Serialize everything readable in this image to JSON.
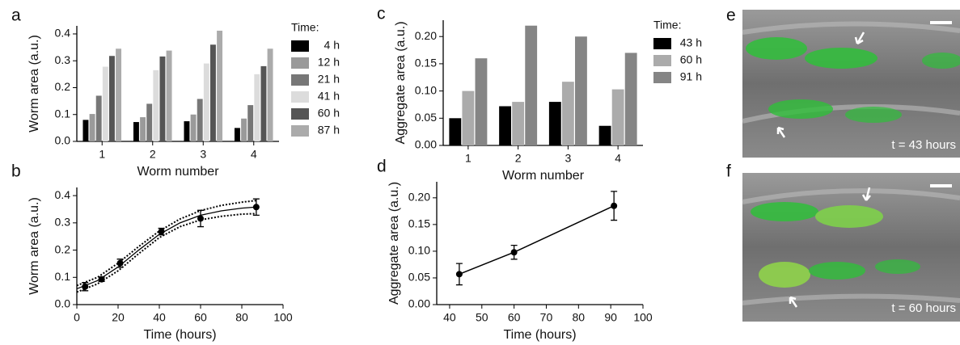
{
  "chart_data": [
    {
      "panel": "a",
      "type": "bar",
      "xlabel": "Worm number",
      "ylabel": "Worm area (a.u.)",
      "categories": [
        "1",
        "2",
        "3",
        "4"
      ],
      "legend_title": "Time:",
      "series": [
        {
          "name": "4 h",
          "color": "#000000",
          "values": [
            0.08,
            0.072,
            0.075,
            0.05
          ]
        },
        {
          "name": "12 h",
          "color": "#9a9a9a",
          "values": [
            0.102,
            0.09,
            0.1,
            0.085
          ]
        },
        {
          "name": "21 h",
          "color": "#777777",
          "values": [
            0.17,
            0.14,
            0.158,
            0.135
          ]
        },
        {
          "name": "41 h",
          "color": "#dcdcdc",
          "values": [
            0.278,
            0.265,
            0.29,
            0.25
          ]
        },
        {
          "name": "60 h",
          "color": "#555555",
          "values": [
            0.318,
            0.316,
            0.36,
            0.28
          ]
        },
        {
          "name": "87 h",
          "color": "#ababab",
          "values": [
            0.345,
            0.338,
            0.412,
            0.345
          ]
        }
      ],
      "ylim": [
        0,
        0.43
      ],
      "yticks": [
        {
          "value": 0,
          "label": "0.0"
        },
        0.1,
        0.2,
        0.3,
        0.4
      ]
    },
    {
      "panel": "b",
      "type": "scatter",
      "xlabel": "Time (hours)",
      "ylabel": "Worm area (a.u.)",
      "x": [
        4,
        12,
        21,
        41,
        60,
        87
      ],
      "values": [
        0.066,
        0.093,
        0.152,
        0.268,
        0.316,
        0.358
      ],
      "errors": [
        0.015,
        0.008,
        0.015,
        0.012,
        0.03,
        0.03
      ],
      "color": "#000000",
      "connect": false,
      "fit": {
        "x": [
          0,
          10,
          20,
          30,
          40,
          50,
          60,
          70,
          80,
          87
        ],
        "values": [
          0.058,
          0.088,
          0.138,
          0.2,
          0.258,
          0.3,
          0.328,
          0.344,
          0.354,
          0.358
        ],
        "upper": [
          0.07,
          0.1,
          0.152,
          0.213,
          0.27,
          0.314,
          0.345,
          0.364,
          0.376,
          0.382
        ],
        "lower": [
          0.046,
          0.076,
          0.124,
          0.187,
          0.246,
          0.286,
          0.311,
          0.324,
          0.332,
          0.334
        ]
      },
      "xlim": [
        0,
        100
      ],
      "xticks": [
        0,
        20,
        40,
        60,
        80,
        100
      ],
      "ylim": [
        0,
        0.43
      ],
      "yticks": [
        {
          "value": 0,
          "label": "0.0"
        },
        0.1,
        0.2,
        0.3,
        0.4
      ]
    },
    {
      "panel": "c",
      "type": "bar",
      "xlabel": "Worm number",
      "ylabel": "Aggregate area (a.u.)",
      "categories": [
        "1",
        "2",
        "3",
        "4"
      ],
      "legend_title": "Time:",
      "series": [
        {
          "name": "43 h",
          "color": "#000000",
          "values": [
            0.05,
            0.072,
            0.08,
            0.036
          ]
        },
        {
          "name": "60 h",
          "color": "#ababab",
          "values": [
            0.1,
            0.08,
            0.117,
            0.103
          ]
        },
        {
          "name": "91 h",
          "color": "#858585",
          "values": [
            0.16,
            0.22,
            0.2,
            0.17
          ]
        }
      ],
      "ylim": [
        0,
        0.23
      ],
      "yticks": [
        {
          "value": 0,
          "label": "0.00"
        },
        0.05,
        {
          "value": 0.1,
          "label": "0.10"
        },
        0.15,
        {
          "value": 0.2,
          "label": "0.20"
        }
      ]
    },
    {
      "panel": "d",
      "type": "scatter",
      "xlabel": "Time (hours)",
      "ylabel": "Aggregate area (a.u.)",
      "x": [
        43,
        60,
        91
      ],
      "values": [
        0.057,
        0.098,
        0.185
      ],
      "errors": [
        0.02,
        0.013,
        0.027
      ],
      "color": "#000000",
      "connect": true,
      "xlim": [
        36,
        100
      ],
      "xticks": [
        40,
        50,
        60,
        70,
        80,
        90,
        100
      ],
      "ylim": [
        0,
        0.23
      ],
      "yticks": [
        {
          "value": 0,
          "label": "0.00"
        },
        0.05,
        {
          "value": 0.1,
          "label": "0.10"
        },
        0.15,
        {
          "value": 0.2,
          "label": "0.20"
        }
      ]
    }
  ],
  "images": [
    {
      "panel": "e",
      "caption": "t = 43 hours"
    },
    {
      "panel": "f",
      "caption": "t = 60 hours"
    }
  ]
}
